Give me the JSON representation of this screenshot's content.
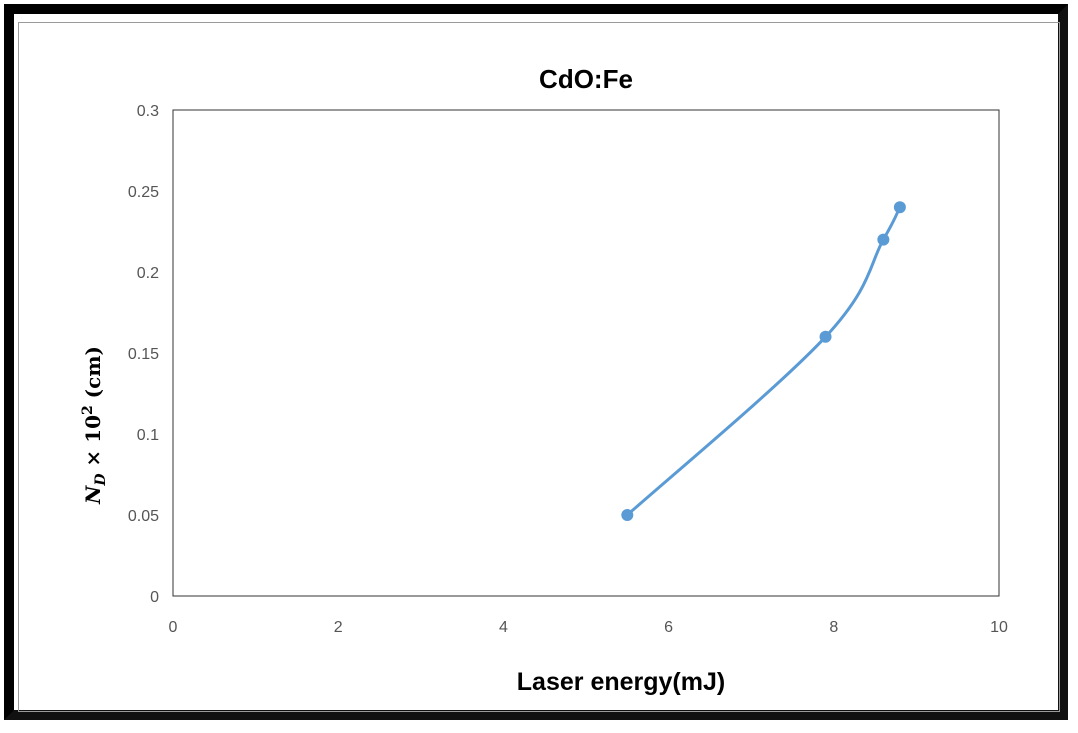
{
  "chart_data": {
    "type": "scatter",
    "title": "CdO:Fe",
    "xlabel": "Laser energy(mJ)",
    "ylabel_main": "N",
    "ylabel_sub": "D",
    "ylabel_rest": " × 10",
    "ylabel_sup": "2",
    "ylabel_unit": " (cm)",
    "xlim": [
      0,
      10
    ],
    "ylim": [
      0,
      0.3
    ],
    "x_ticks": [
      "0",
      "2",
      "4",
      "6",
      "8",
      "10"
    ],
    "y_ticks": [
      "0",
      "0.05",
      "0.1",
      "0.15",
      "0.2",
      "0.25",
      "0.3"
    ],
    "grid": false,
    "series": [
      {
        "x": [
          5.5,
          7.9,
          8.6,
          8.8
        ],
        "y": [
          0.05,
          0.16,
          0.22,
          0.24
        ],
        "color": "#5b9bd5",
        "line": "smooth",
        "marker": "circle"
      }
    ]
  }
}
